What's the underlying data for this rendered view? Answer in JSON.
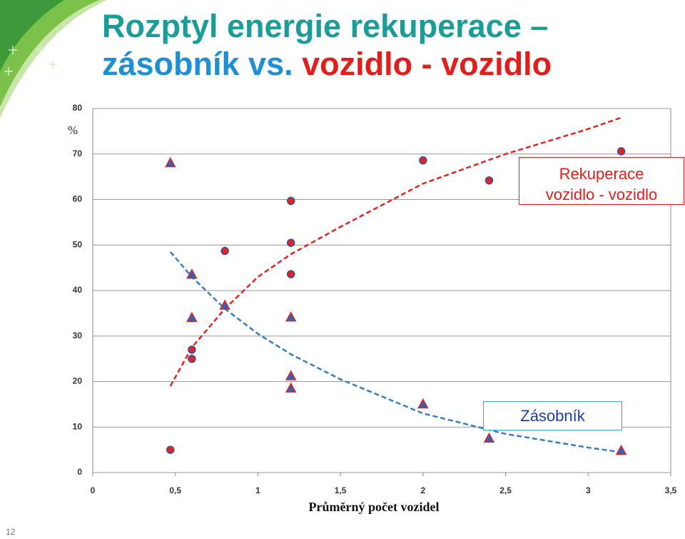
{
  "slide": {
    "title_line1": "Rozptyl energie rekuperace –",
    "title_line2_blue": "zásobník vs.",
    "title_line2_red": "vozidlo - vozidlo",
    "page_number": "12"
  },
  "chart_data": {
    "type": "scatter",
    "y_label": "%",
    "x_label": "Průměrný počet vozidel",
    "xlim": [
      0,
      3.5
    ],
    "ylim": [
      0,
      80
    ],
    "xticks": [
      0,
      {
        "value": 0.5,
        "label": "0,5"
      },
      1,
      {
        "value": 1.5,
        "label": "1,5"
      },
      2,
      {
        "value": 2.5,
        "label": "2,5"
      },
      3,
      {
        "value": 3.5,
        "label": "3,5"
      }
    ],
    "yticks": [
      0,
      10,
      20,
      30,
      40,
      50,
      60,
      70,
      80
    ],
    "grid": true,
    "series": [
      {
        "name": "Rekuperace vozidlo - vozidlo",
        "marker": "circle",
        "color": "#e3231e",
        "edge": "#2b55a8",
        "x": [
          0.47,
          0.6,
          0.6,
          0.8,
          1.2,
          1.2,
          1.2,
          2.0,
          2.4,
          3.2
        ],
        "values": [
          5,
          27,
          25,
          48.7,
          59.7,
          50.5,
          43.6,
          68.6,
          64.2,
          70.6
        ],
        "trend": {
          "color": "#e3231e",
          "x": [
            0.47,
            0.6,
            0.8,
            1.0,
            1.2,
            1.5,
            2.0,
            2.5,
            3.0,
            3.2
          ],
          "values": [
            19,
            27.5,
            36,
            43,
            48,
            54,
            63.5,
            70,
            75.5,
            78
          ]
        }
      },
      {
        "name": "Zásobník",
        "marker": "triangle",
        "color": "#2f62b8",
        "edge": "#e3231e",
        "x": [
          0.47,
          0.6,
          0.6,
          0.8,
          1.2,
          1.2,
          1.2,
          2.0,
          2.4,
          3.2
        ],
        "values": [
          68,
          43.5,
          34,
          36.7,
          34.1,
          21.2,
          18.5,
          15,
          7.5,
          4.8
        ],
        "trend": {
          "color": "#2f7fc8",
          "x": [
            0.47,
            0.6,
            0.8,
            1.0,
            1.2,
            1.5,
            2.0,
            2.5,
            3.0,
            3.2
          ],
          "values": [
            48.5,
            43,
            36,
            30.5,
            26,
            20.5,
            13,
            8.5,
            5.5,
            4.5
          ]
        }
      }
    ]
  }
}
